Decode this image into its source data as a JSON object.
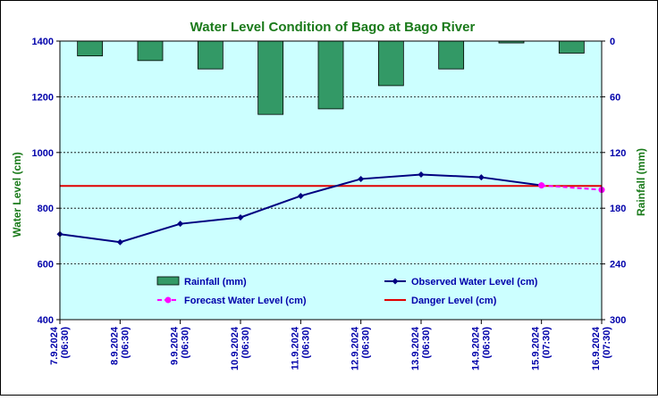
{
  "colors": {
    "title": "#1a7a1a",
    "axis_left_title": "#1a7a1a",
    "axis_right_title": "#1a7a1a",
    "tick_text": "#0000aa",
    "plot_bg": "#ccffff",
    "bar_fill": "#339966",
    "observed": "#000080",
    "forecast": "#ff00ff",
    "danger": "#e00000",
    "grid": "#000000"
  },
  "chart_data": {
    "type": "line",
    "title": "Water Level Condition of Bago at Bago River",
    "ylabel": "Water Level (cm)",
    "y2label": "Rainfall (mm)",
    "ylim": [
      400,
      1400
    ],
    "yticks": [
      400,
      600,
      800,
      1000,
      1200,
      1400
    ],
    "y2lim": [
      0,
      300
    ],
    "y2ticks": [
      0,
      60,
      120,
      180,
      240,
      300
    ],
    "y2_inverted": true,
    "grid": true,
    "legend_position": "bottom-inside",
    "categories": [
      [
        "7.9.2024",
        "(06:30)"
      ],
      [
        "8.9.2024",
        "(06:30)"
      ],
      [
        "9.9.2024",
        "(06:30)"
      ],
      [
        "10.9.2024",
        "(06:30)"
      ],
      [
        "11.9.2024",
        "(06:30)"
      ],
      [
        "12.9.2024",
        "(06:30)"
      ],
      [
        "13.9.2024",
        "(06:30)"
      ],
      [
        "14.9.2024",
        "(06:30)"
      ],
      [
        "15.9.2024",
        "(07:30)"
      ],
      [
        "16.9.2024",
        "(07:30)"
      ]
    ],
    "rainfall": [
      16,
      21,
      30,
      79,
      73,
      48,
      30,
      2,
      13
    ],
    "observed": [
      707,
      678,
      744,
      767,
      844,
      905,
      921,
      911,
      882
    ],
    "forecast_points": [
      [
        8,
        882
      ],
      [
        9,
        866
      ]
    ],
    "danger_level": 880,
    "legend": [
      {
        "key": "rainfall",
        "label": "Rainfall (mm)"
      },
      {
        "key": "observed",
        "label": "Observed Water Level (cm)"
      },
      {
        "key": "forecast",
        "label": "Forecast Water Level (cm)"
      },
      {
        "key": "danger",
        "label": "Danger Level (cm)"
      }
    ]
  }
}
